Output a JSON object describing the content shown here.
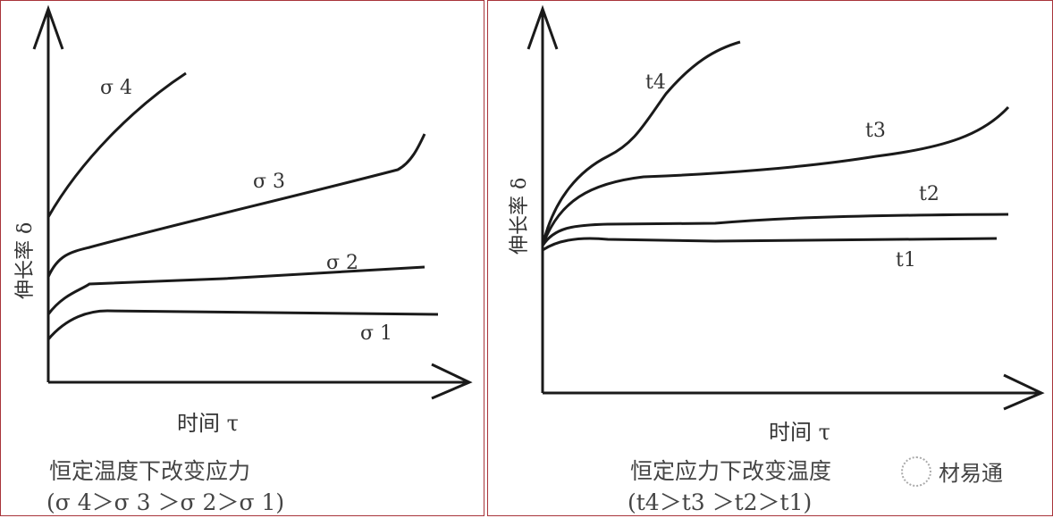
{
  "left": {
    "y_label": "伸长率 δ",
    "x_label": "时间 τ",
    "caption": "恒定温度下改变应力",
    "condition": "(σ 4＞σ 3 ＞σ 2＞σ 1)",
    "curves": [
      "σ 4",
      "σ 3",
      "σ 2",
      "σ 1"
    ]
  },
  "right": {
    "y_label": "伸长率 δ",
    "x_label": "时间 τ",
    "caption": "恒定应力下改变温度",
    "condition": "(t4＞t3 ＞t2＞t1)",
    "curves": [
      "t4",
      "t3",
      "t2",
      "t1"
    ]
  },
  "watermark": {
    "text": "材易通",
    "icon": "wechat-icon"
  },
  "colors": {
    "frame": "#a8343a",
    "line": "#1a1a1a"
  }
}
